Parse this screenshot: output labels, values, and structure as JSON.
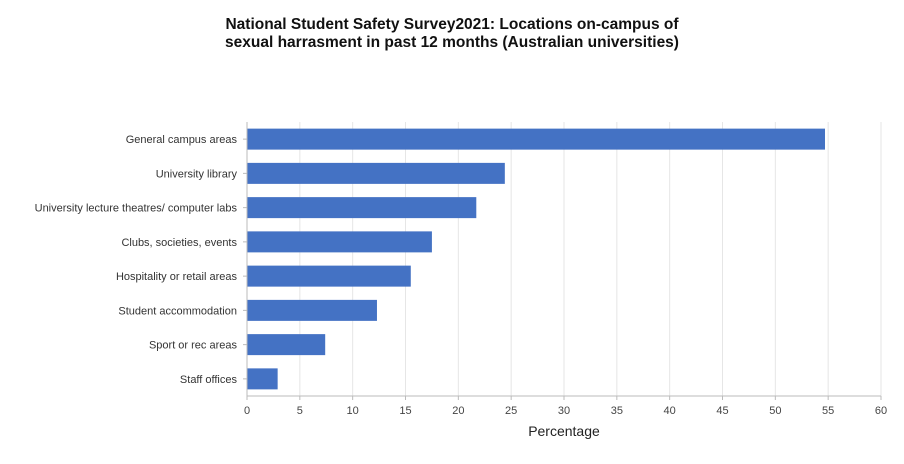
{
  "chart_data": {
    "type": "bar",
    "orientation": "horizontal",
    "title_lines": [
      "National Student Safety Survey2021: Locations on-campus of",
      "sexual harrasment in past 12 months (Australian universities)"
    ],
    "categories": [
      "General campus areas",
      "University library",
      "University lecture theatres/ computer labs",
      "Clubs, societies, events",
      "Hospitality or retail areas",
      "Student accommodation",
      "Sport or rec areas",
      "Staff offices"
    ],
    "values": [
      54.7,
      24.4,
      21.7,
      17.5,
      15.5,
      12.3,
      7.4,
      2.9
    ],
    "xlabel": "Percentage",
    "ylabel": "",
    "xlim": [
      0,
      60
    ],
    "xticks": [
      0,
      5,
      10,
      15,
      20,
      25,
      30,
      35,
      40,
      45,
      50,
      55,
      60
    ],
    "grid": true,
    "legend": "none",
    "colors": {
      "bar": "#4472c4",
      "grid": "#e6e6e6",
      "axis": "#bbbbbb"
    }
  }
}
